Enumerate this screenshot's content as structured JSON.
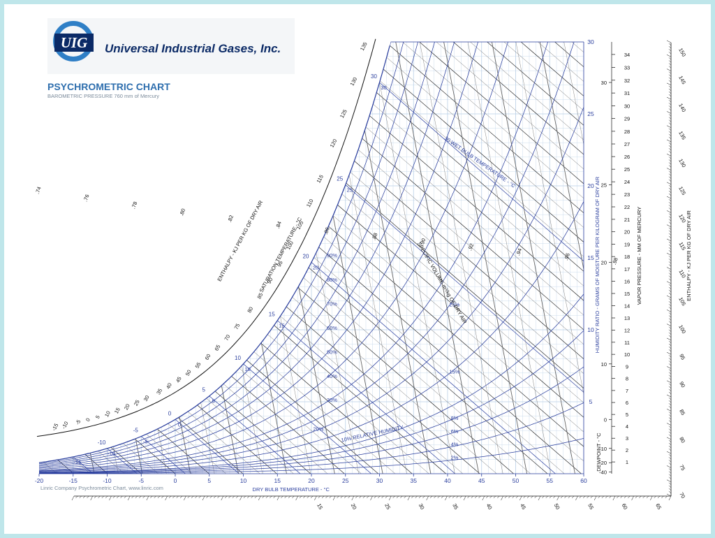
{
  "header": {
    "logo_text": "UIG",
    "company_name": "Universal Industrial Gases, Inc.",
    "title": "PSYCHROMETRIC CHART",
    "subtitle": "BAROMETRIC PRESSURE 760 mm of Mercury"
  },
  "footer": {
    "credit": "Linric Company Psychrometric Chart, www.linric.com"
  },
  "colors": {
    "background": "#bfe6ea",
    "grid": "#b9cfe6",
    "blue": "#2b3f9e",
    "dark": "#111111",
    "gray": "#666666"
  },
  "chart_data": {
    "type": "psychrometric",
    "pressure_mm_hg": 760,
    "dry_bulb": {
      "label": "DRY BULB TEMPERATURE - °C",
      "range": [
        -20,
        60
      ],
      "ticks": [
        "-20",
        "-15",
        "-10",
        "-5",
        "0",
        "5",
        "10",
        "15",
        "20",
        "25",
        "30",
        "35",
        "40",
        "45",
        "50",
        "55",
        "60"
      ]
    },
    "humidity_ratio": {
      "label": "HUMIDITY RATIO - GRAMS OF MOISTURE PER KILOGRAM OF DRY AIR",
      "range": [
        0,
        30
      ],
      "ticks": [
        "5",
        "10",
        "15",
        "20",
        "25",
        "30"
      ]
    },
    "saturation_temperature": {
      "label": "SATURATION TEMPERATURE - °C",
      "ticks": [
        "-10",
        "-5",
        "0",
        "5",
        "10",
        "15",
        "20",
        "25",
        "30"
      ]
    },
    "relative_humidity": {
      "label": "10% RELATIVE HUMIDITY",
      "curves": [
        2,
        4,
        6,
        8,
        10,
        15,
        20,
        25,
        30,
        40,
        50,
        60,
        70,
        80,
        90,
        100
      ],
      "labels": [
        "2%",
        "4%",
        "6%",
        "8%",
        "15%",
        "20%",
        "25%",
        "30%",
        "40%",
        "50%",
        "60%",
        "70%",
        "80%",
        "90%"
      ]
    },
    "wet_bulb": {
      "label": "30 WET BULB TEMPERATURE - °C",
      "values": [
        -15,
        -10,
        -5,
        0,
        5,
        10,
        15,
        20,
        25,
        30
      ],
      "labels": [
        "-15",
        "-10",
        "-5",
        "0",
        "5",
        "10",
        "15",
        "20",
        "25",
        "30"
      ]
    },
    "specific_volume": {
      "label": "SPECIFIC VOLUME m³/kg OF DRY AIR",
      "labels": [
        ".74",
        ".76",
        ".78",
        ".80",
        ".82",
        ".84",
        ".86",
        ".88",
        ".90",
        ".92",
        ".94",
        ".96",
        ".98"
      ]
    },
    "enthalpy": {
      "label": "ENTHALPY - KJ PER KG OF DRY AIR",
      "scale_ticks": [
        "-15",
        "-10",
        "-5",
        "0",
        "5",
        "10",
        "15",
        "20",
        "25",
        "30",
        "35",
        "40",
        "45",
        "50",
        "55",
        "60",
        "65",
        "70",
        "75",
        "80",
        "85",
        "90",
        "95",
        "100",
        "105",
        "110",
        "115",
        "120",
        "125",
        "130",
        "135"
      ],
      "bottom_ticks": [
        "15",
        "20",
        "25",
        "30",
        "35",
        "40",
        "45",
        "50",
        "55",
        "60",
        "65"
      ],
      "right_ticks": [
        "70",
        "75",
        "80",
        "85",
        "90",
        "95",
        "100",
        "105",
        "110",
        "115",
        "120",
        "125",
        "130",
        "135",
        "140",
        "145",
        "150"
      ]
    },
    "dewpoint": {
      "label": "DEWPOINT - °C",
      "ticks": [
        "-40",
        "-20",
        "-10",
        "0",
        "10",
        "20",
        "25",
        "30"
      ]
    },
    "vapor_pressure": {
      "label": "VAPOR PRESSURE - MM OF MERCURY",
      "ticks": [
        "1",
        "2",
        "3",
        "4",
        "5",
        "6",
        "7",
        "8",
        "9",
        "10",
        "11",
        "12",
        "13",
        "14",
        "15",
        "16",
        "17",
        "18",
        "19",
        "20",
        "21",
        "22",
        "23",
        "24",
        "25",
        "26",
        "27",
        "28",
        "29",
        "30",
        "31",
        "32",
        "33",
        "34"
      ]
    }
  }
}
